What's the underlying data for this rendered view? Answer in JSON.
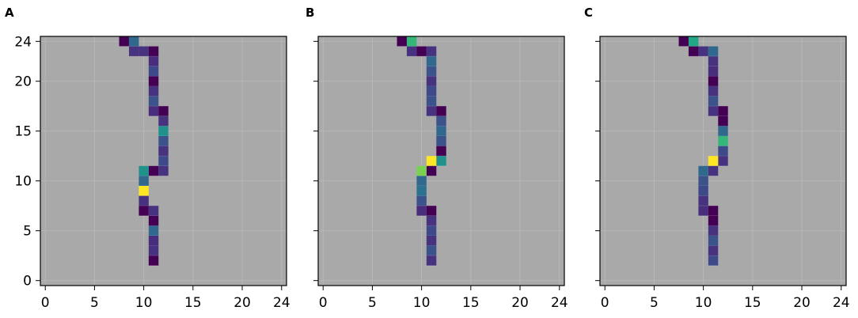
{
  "chart_data": [
    {
      "type": "heatmap",
      "panel_label": "A",
      "xlim": [
        -0.5,
        24.5
      ],
      "ylim": [
        -0.5,
        24.5
      ],
      "xticks": [
        0,
        5,
        10,
        15,
        20,
        24
      ],
      "yticks": [
        0,
        5,
        10,
        15,
        20,
        24
      ],
      "background_color": "#a9a9a9",
      "grid": true,
      "cells": [
        {
          "x": 8,
          "y": 24,
          "c": "#440154"
        },
        {
          "x": 9,
          "y": 24,
          "c": "#31688e"
        },
        {
          "x": 9,
          "y": 23,
          "c": "#46327e"
        },
        {
          "x": 10,
          "y": 23,
          "c": "#46327e"
        },
        {
          "x": 11,
          "y": 23,
          "c": "#440154"
        },
        {
          "x": 11,
          "y": 22,
          "c": "#472d7b"
        },
        {
          "x": 11,
          "y": 21,
          "c": "#3e4989"
        },
        {
          "x": 11,
          "y": 20,
          "c": "#440154"
        },
        {
          "x": 11,
          "y": 19,
          "c": "#46327e"
        },
        {
          "x": 11,
          "y": 18,
          "c": "#3b528b"
        },
        {
          "x": 11,
          "y": 17,
          "c": "#472d7b"
        },
        {
          "x": 12,
          "y": 17,
          "c": "#440154"
        },
        {
          "x": 12,
          "y": 16,
          "c": "#46327e"
        },
        {
          "x": 12,
          "y": 15,
          "c": "#21918c"
        },
        {
          "x": 12,
          "y": 14,
          "c": "#3b528b"
        },
        {
          "x": 12,
          "y": 13,
          "c": "#46327e"
        },
        {
          "x": 12,
          "y": 12,
          "c": "#3e4989"
        },
        {
          "x": 11,
          "y": 11,
          "c": "#440154"
        },
        {
          "x": 12,
          "y": 11,
          "c": "#46327e"
        },
        {
          "x": 10,
          "y": 11,
          "c": "#21918c"
        },
        {
          "x": 10,
          "y": 10,
          "c": "#31688e"
        },
        {
          "x": 10,
          "y": 9,
          "c": "#fde725"
        },
        {
          "x": 10,
          "y": 8,
          "c": "#46327e"
        },
        {
          "x": 10,
          "y": 7,
          "c": "#440154"
        },
        {
          "x": 11,
          "y": 7,
          "c": "#46327e"
        },
        {
          "x": 11,
          "y": 6,
          "c": "#440154"
        },
        {
          "x": 11,
          "y": 5,
          "c": "#31688e"
        },
        {
          "x": 11,
          "y": 4,
          "c": "#472d7b"
        },
        {
          "x": 11,
          "y": 3,
          "c": "#46327e"
        },
        {
          "x": 11,
          "y": 2,
          "c": "#440154"
        }
      ]
    },
    {
      "type": "heatmap",
      "panel_label": "B",
      "xlim": [
        -0.5,
        24.5
      ],
      "ylim": [
        -0.5,
        24.5
      ],
      "xticks": [
        0,
        5,
        10,
        15,
        20,
        24
      ],
      "yticks": [
        0,
        5,
        10,
        15,
        20,
        24
      ],
      "background_color": "#a9a9a9",
      "grid": true,
      "cells": [
        {
          "x": 8,
          "y": 24,
          "c": "#440154"
        },
        {
          "x": 9,
          "y": 24,
          "c": "#35b779"
        },
        {
          "x": 9,
          "y": 23,
          "c": "#46327e"
        },
        {
          "x": 10,
          "y": 23,
          "c": "#440154"
        },
        {
          "x": 11,
          "y": 23,
          "c": "#46327e"
        },
        {
          "x": 11,
          "y": 22,
          "c": "#31688e"
        },
        {
          "x": 11,
          "y": 21,
          "c": "#3b528b"
        },
        {
          "x": 11,
          "y": 20,
          "c": "#46327e"
        },
        {
          "x": 11,
          "y": 19,
          "c": "#3e4989"
        },
        {
          "x": 11,
          "y": 18,
          "c": "#3b528b"
        },
        {
          "x": 11,
          "y": 17,
          "c": "#46327e"
        },
        {
          "x": 12,
          "y": 17,
          "c": "#440154"
        },
        {
          "x": 12,
          "y": 16,
          "c": "#3b528b"
        },
        {
          "x": 12,
          "y": 15,
          "c": "#31688e"
        },
        {
          "x": 12,
          "y": 14,
          "c": "#3b528b"
        },
        {
          "x": 12,
          "y": 13,
          "c": "#440154"
        },
        {
          "x": 12,
          "y": 12,
          "c": "#21918c"
        },
        {
          "x": 11,
          "y": 12,
          "c": "#fde725"
        },
        {
          "x": 11,
          "y": 11,
          "c": "#440154"
        },
        {
          "x": 10,
          "y": 11,
          "c": "#7ad151"
        },
        {
          "x": 10,
          "y": 10,
          "c": "#31688e"
        },
        {
          "x": 10,
          "y": 9,
          "c": "#2c728e"
        },
        {
          "x": 10,
          "y": 8,
          "c": "#3b528b"
        },
        {
          "x": 10,
          "y": 7,
          "c": "#472d7b"
        },
        {
          "x": 11,
          "y": 7,
          "c": "#440154"
        },
        {
          "x": 11,
          "y": 6,
          "c": "#46327e"
        },
        {
          "x": 11,
          "y": 5,
          "c": "#3e4989"
        },
        {
          "x": 11,
          "y": 4,
          "c": "#46327e"
        },
        {
          "x": 11,
          "y": 3,
          "c": "#3b528b"
        },
        {
          "x": 11,
          "y": 2,
          "c": "#46327e"
        }
      ]
    },
    {
      "type": "heatmap",
      "panel_label": "C",
      "xlim": [
        -0.5,
        24.5
      ],
      "ylim": [
        -0.5,
        24.5
      ],
      "xticks": [
        0,
        5,
        10,
        15,
        20,
        24
      ],
      "yticks": [
        0,
        5,
        10,
        15,
        20,
        24
      ],
      "background_color": "#a9a9a9",
      "grid": true,
      "cells": [
        {
          "x": 8,
          "y": 24,
          "c": "#440154"
        },
        {
          "x": 9,
          "y": 24,
          "c": "#22a884"
        },
        {
          "x": 9,
          "y": 23,
          "c": "#440154"
        },
        {
          "x": 10,
          "y": 23,
          "c": "#46327e"
        },
        {
          "x": 11,
          "y": 23,
          "c": "#31688e"
        },
        {
          "x": 11,
          "y": 22,
          "c": "#46327e"
        },
        {
          "x": 11,
          "y": 21,
          "c": "#472d7b"
        },
        {
          "x": 11,
          "y": 20,
          "c": "#440154"
        },
        {
          "x": 11,
          "y": 19,
          "c": "#46327e"
        },
        {
          "x": 11,
          "y": 18,
          "c": "#3b528b"
        },
        {
          "x": 11,
          "y": 17,
          "c": "#46327e"
        },
        {
          "x": 12,
          "y": 17,
          "c": "#440154"
        },
        {
          "x": 12,
          "y": 16,
          "c": "#440154"
        },
        {
          "x": 12,
          "y": 15,
          "c": "#31688e"
        },
        {
          "x": 12,
          "y": 14,
          "c": "#35b779"
        },
        {
          "x": 12,
          "y": 13,
          "c": "#3e4989"
        },
        {
          "x": 12,
          "y": 12,
          "c": "#46327e"
        },
        {
          "x": 11,
          "y": 12,
          "c": "#fde725"
        },
        {
          "x": 11,
          "y": 11,
          "c": "#46327e"
        },
        {
          "x": 10,
          "y": 11,
          "c": "#31688e"
        },
        {
          "x": 10,
          "y": 10,
          "c": "#3b528b"
        },
        {
          "x": 10,
          "y": 9,
          "c": "#3e4989"
        },
        {
          "x": 10,
          "y": 8,
          "c": "#46327e"
        },
        {
          "x": 10,
          "y": 7,
          "c": "#472d7b"
        },
        {
          "x": 11,
          "y": 7,
          "c": "#440154"
        },
        {
          "x": 11,
          "y": 6,
          "c": "#440154"
        },
        {
          "x": 11,
          "y": 5,
          "c": "#46327e"
        },
        {
          "x": 11,
          "y": 4,
          "c": "#3b528b"
        },
        {
          "x": 11,
          "y": 3,
          "c": "#46327e"
        },
        {
          "x": 11,
          "y": 2,
          "c": "#3e4989"
        }
      ]
    }
  ]
}
